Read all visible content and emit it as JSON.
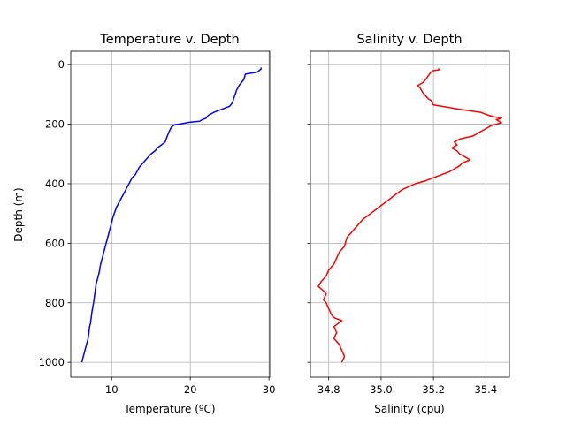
{
  "chart_data": [
    {
      "type": "line",
      "title": "Temperature v. Depth",
      "xlabel": "Temperature (ºC)",
      "ylabel": "Depth (m)",
      "xlim": [
        4.8,
        30.1
      ],
      "ylim": [
        1050,
        -45
      ],
      "xticks": [
        "10",
        "20",
        "30"
      ],
      "yticks": [
        "0",
        "200",
        "400",
        "600",
        "800",
        "1000"
      ],
      "grid": true,
      "color": "#0000ff",
      "series": [
        {
          "x": [
            29.0,
            29.0,
            28.5,
            27.0,
            26.8,
            26.2,
            25.9,
            25.7,
            25.5,
            25.4,
            25.3,
            25.0,
            24.0,
            23.0,
            22.3,
            22.0,
            21.5,
            21.2,
            20.0,
            19.0,
            18.0,
            17.6,
            17.3,
            17.0,
            16.8,
            16.3,
            15.8,
            15.5,
            15.0,
            14.5,
            14.0,
            13.5,
            13.3,
            13.0,
            12.6,
            12.3,
            12.0,
            11.8,
            11.4,
            11.0,
            10.6,
            10.2,
            9.9,
            9.7,
            9.4,
            9.2,
            9.0,
            8.8,
            8.6,
            8.4,
            8.2,
            8.0,
            7.9,
            7.8,
            7.7,
            7.6,
            7.5,
            7.4,
            7.3,
            7.2,
            7.1,
            7.0,
            6.8,
            6.6,
            6.4,
            6.2
          ],
          "y": [
            10,
            15,
            25,
            32,
            50,
            70,
            85,
            100,
            115,
            125,
            130,
            140,
            150,
            160,
            170,
            180,
            185,
            190,
            193,
            198,
            202,
            210,
            225,
            245,
            260,
            270,
            280,
            290,
            300,
            315,
            330,
            345,
            355,
            370,
            380,
            395,
            410,
            420,
            440,
            460,
            480,
            510,
            540,
            560,
            590,
            610,
            630,
            650,
            670,
            700,
            720,
            740,
            760,
            780,
            800,
            815,
            830,
            850,
            870,
            880,
            900,
            920,
            940,
            960,
            980,
            1000
          ]
        }
      ]
    },
    {
      "type": "line",
      "title": "Salinity v. Depth",
      "xlabel": "Salinity (cpu)",
      "ylabel": "",
      "xlim": [
        34.73,
        35.49
      ],
      "ylim": [
        1050,
        -45
      ],
      "xticks": [
        "34.8",
        "35.0",
        "35.2",
        "35.4"
      ],
      "yticks": [
        "0",
        "200",
        "400",
        "600",
        "800",
        "1000"
      ],
      "grid": true,
      "color": "#ff0000",
      "series": [
        {
          "x": [
            35.22,
            35.22,
            35.2,
            35.19,
            35.17,
            35.16,
            35.15,
            35.14,
            35.15,
            35.16,
            35.17,
            35.18,
            35.19,
            35.2,
            35.3,
            35.38,
            35.41,
            35.43,
            35.46,
            35.44,
            35.46,
            35.42,
            35.4,
            35.38,
            35.35,
            35.3,
            35.28,
            35.29,
            35.27,
            35.29,
            35.3,
            35.32,
            35.34,
            35.31,
            35.3,
            35.28,
            35.26,
            35.23,
            35.2,
            35.17,
            35.13,
            35.08,
            35.05,
            35.02,
            34.99,
            34.96,
            34.93,
            34.91,
            34.89,
            34.87,
            34.86,
            34.84,
            34.83,
            34.82,
            34.8,
            34.79,
            34.77,
            34.76,
            34.78,
            34.79,
            34.78,
            34.79,
            34.8,
            34.81,
            34.82,
            34.85,
            34.82,
            34.83,
            34.82,
            34.84,
            34.85,
            34.86,
            34.85
          ],
          "y": [
            12,
            18,
            20,
            25,
            50,
            60,
            65,
            70,
            80,
            95,
            105,
            115,
            120,
            135,
            150,
            160,
            170,
            175,
            180,
            185,
            195,
            205,
            215,
            225,
            240,
            250,
            260,
            270,
            280,
            290,
            300,
            310,
            320,
            330,
            340,
            350,
            360,
            370,
            380,
            390,
            400,
            420,
            440,
            460,
            480,
            500,
            520,
            540,
            560,
            580,
            610,
            630,
            650,
            670,
            690,
            710,
            730,
            745,
            760,
            770,
            790,
            800,
            820,
            840,
            850,
            860,
            880,
            900,
            920,
            940,
            960,
            980,
            1000
          ]
        }
      ]
    }
  ]
}
